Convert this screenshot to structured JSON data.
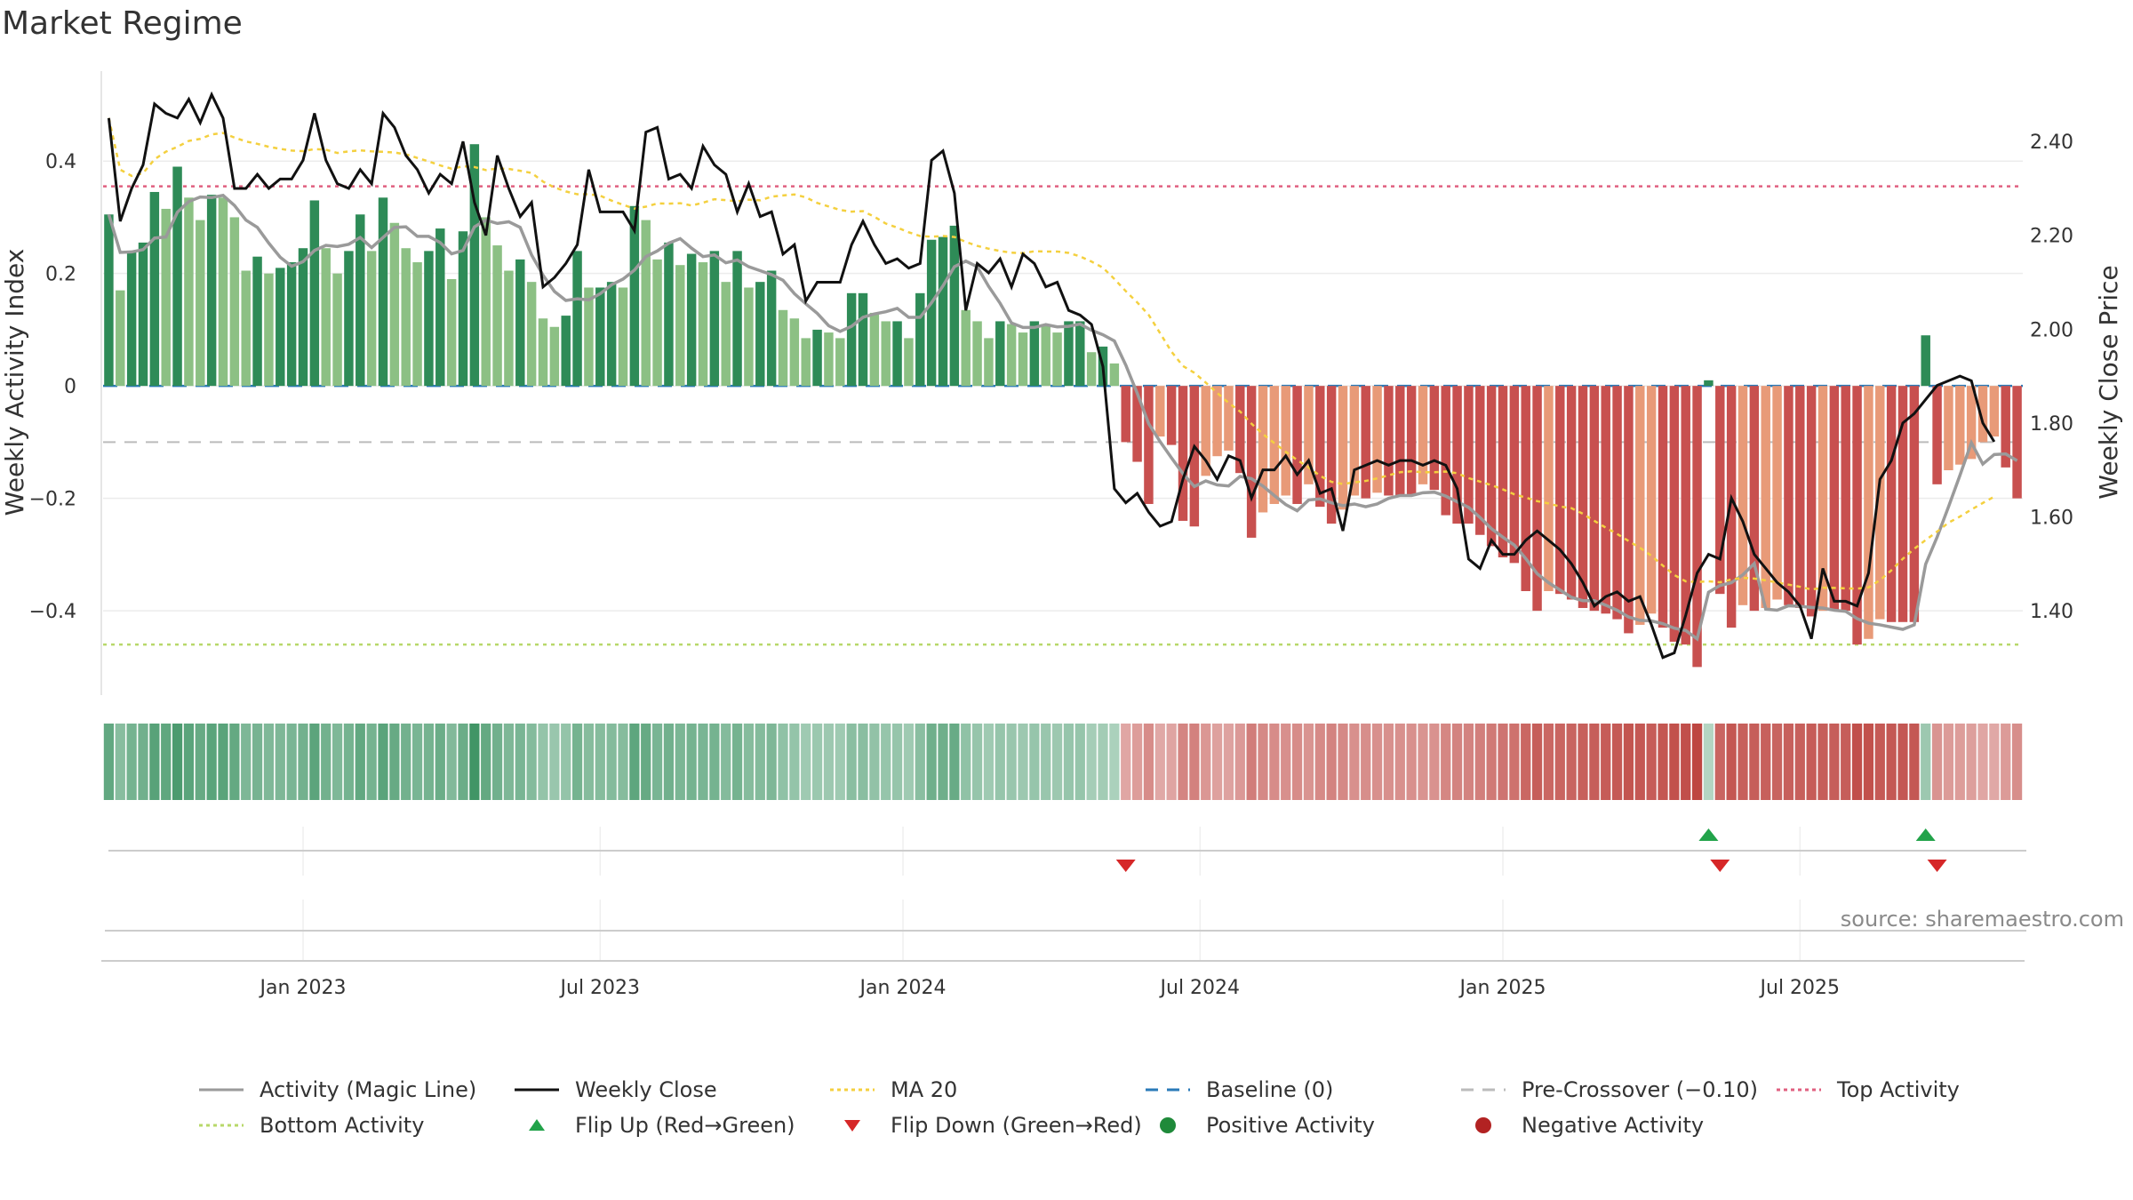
{
  "title": "Market Regime",
  "source": "source: sharemaestro.com",
  "colors": {
    "pos_dark": "#2e8b57",
    "pos_light": "#8cc084",
    "neg_dark": "#c8504f",
    "neg_light": "#e89a78",
    "magic": "#9a9a9a",
    "close": "#111111",
    "ma": "#f4d03f",
    "baseline": "#2a7ab8",
    "precross": "#bbbbbb",
    "top": "#e06080",
    "bottom": "#b8d86a",
    "flip_up": "#22a34a",
    "flip_down": "#d62728",
    "pos_dot": "#1f8a3a",
    "neg_dot": "#b22222"
  },
  "legend": [
    {
      "label": "Activity (Magic Line)",
      "swatch": "line",
      "color": "#9a9a9a"
    },
    {
      "label": "Weekly Close",
      "swatch": "line",
      "color": "#111111"
    },
    {
      "label": "MA 20",
      "swatch": "dotted",
      "color": "#f4d03f"
    },
    {
      "label": "Baseline (0)",
      "swatch": "dashed",
      "color": "#2a7ab8"
    },
    {
      "label": "Pre-Crossover (−0.10)",
      "swatch": "dashed",
      "color": "#bbbbbb"
    },
    {
      "label": "Top Activity",
      "swatch": "dotted",
      "color": "#e06080"
    },
    {
      "label": "Bottom Activity",
      "swatch": "dotted",
      "color": "#b8d86a"
    },
    {
      "label": "Flip Up (Red→Green)",
      "swatch": "tri-up",
      "color": "#22a34a"
    },
    {
      "label": "Flip Down (Green→Red)",
      "swatch": "tri-down",
      "color": "#d62728"
    },
    {
      "label": "Positive Activity",
      "swatch": "dot",
      "color": "#1f8a3a"
    },
    {
      "label": "Negative Activity",
      "swatch": "dot",
      "color": "#b22222"
    }
  ],
  "chart_data": {
    "type": "bar",
    "xlabel": "",
    "ylabel": "Weekly Activity Index",
    "y2label": "Weekly Close Price",
    "ylim": [
      -0.55,
      0.56
    ],
    "y2lim": [
      1.22,
      2.55
    ],
    "yticks": [
      {
        "v": -0.4,
        "label": "−0.4"
      },
      {
        "v": -0.2,
        "label": "−0.2"
      },
      {
        "v": 0,
        "label": "0"
      },
      {
        "v": 0.2,
        "label": "0.2"
      },
      {
        "v": 0.4,
        "label": "0.4"
      }
    ],
    "y2ticks": [
      "1.40",
      "1.60",
      "1.80",
      "2.00",
      "2.20",
      "2.40"
    ],
    "xticks": [
      {
        "label": "Jan 2023",
        "week": 17.5
      },
      {
        "label": "Jul 2023",
        "week": 43.5
      },
      {
        "label": "Jan 2024",
        "week": 70
      },
      {
        "label": "Jul 2024",
        "week": 96
      },
      {
        "label": "Jan 2025",
        "week": 122.5
      },
      {
        "label": "Jul 2025",
        "week": 148.5
      }
    ],
    "reference_lines": {
      "baseline": 0,
      "pre_crossover": -0.1,
      "top_activity": 0.355,
      "bottom_activity": -0.46
    },
    "activity": [
      0.305,
      0.17,
      0.24,
      0.255,
      0.345,
      0.315,
      0.39,
      0.335,
      0.295,
      0.34,
      0.335,
      0.3,
      0.205,
      0.23,
      0.2,
      0.21,
      0.22,
      0.245,
      0.33,
      0.245,
      0.2,
      0.24,
      0.305,
      0.24,
      0.335,
      0.29,
      0.245,
      0.22,
      0.24,
      0.28,
      0.19,
      0.275,
      0.43,
      0.3,
      0.25,
      0.205,
      0.225,
      0.185,
      0.12,
      0.105,
      0.125,
      0.24,
      0.175,
      0.175,
      0.185,
      0.175,
      0.32,
      0.295,
      0.225,
      0.255,
      0.215,
      0.235,
      0.22,
      0.24,
      0.185,
      0.24,
      0.175,
      0.185,
      0.205,
      0.135,
      0.12,
      0.085,
      0.1,
      0.095,
      0.085,
      0.165,
      0.165,
      0.13,
      0.115,
      0.115,
      0.085,
      0.165,
      0.26,
      0.265,
      0.285,
      0.135,
      0.115,
      0.085,
      0.115,
      0.11,
      0.095,
      0.115,
      0.11,
      0.095,
      0.115,
      0.115,
      0.06,
      0.07,
      0.04,
      -0.1,
      -0.135,
      -0.21,
      -0.09,
      -0.105,
      -0.24,
      -0.25,
      -0.16,
      -0.125,
      -0.115,
      -0.155,
      -0.27,
      -0.225,
      -0.21,
      -0.195,
      -0.21,
      -0.175,
      -0.215,
      -0.245,
      -0.22,
      -0.195,
      -0.2,
      -0.19,
      -0.195,
      -0.195,
      -0.195,
      -0.175,
      -0.185,
      -0.23,
      -0.245,
      -0.245,
      -0.265,
      -0.285,
      -0.305,
      -0.315,
      -0.365,
      -0.4,
      -0.365,
      -0.37,
      -0.38,
      -0.395,
      -0.4,
      -0.405,
      -0.415,
      -0.44,
      -0.425,
      -0.405,
      -0.43,
      -0.455,
      -0.46,
      -0.5,
      0.01,
      -0.37,
      -0.43,
      -0.39,
      -0.4,
      -0.395,
      -0.38,
      -0.39,
      -0.395,
      -0.41,
      -0.4,
      -0.4,
      -0.4,
      -0.46,
      -0.45,
      -0.415,
      -0.42,
      -0.42,
      -0.42,
      0.09,
      -0.175,
      -0.15,
      -0.14,
      -0.13,
      -0.1,
      -0.09,
      -0.145,
      -0.2
    ],
    "weekly_close": [
      2.45,
      2.23,
      2.3,
      2.35,
      2.48,
      2.46,
      2.45,
      2.49,
      2.44,
      2.5,
      2.45,
      2.3,
      2.3,
      2.33,
      2.3,
      2.32,
      2.32,
      2.36,
      2.46,
      2.36,
      2.31,
      2.3,
      2.34,
      2.31,
      2.46,
      2.43,
      2.37,
      2.34,
      2.29,
      2.33,
      2.31,
      2.4,
      2.27,
      2.2,
      2.37,
      2.3,
      2.24,
      2.27,
      2.09,
      2.11,
      2.14,
      2.18,
      2.34,
      2.25,
      2.25,
      2.25,
      2.21,
      2.42,
      2.43,
      2.32,
      2.33,
      2.3,
      2.39,
      2.35,
      2.33,
      2.25,
      2.31,
      2.24,
      2.25,
      2.16,
      2.18,
      2.06,
      2.1,
      2.1,
      2.1,
      2.18,
      2.23,
      2.18,
      2.14,
      2.15,
      2.13,
      2.14,
      2.36,
      2.38,
      2.29,
      2.04,
      2.14,
      2.12,
      2.15,
      2.09,
      2.16,
      2.14,
      2.09,
      2.1,
      2.04,
      2.03,
      2.01,
      1.92,
      1.66,
      1.63,
      1.65,
      1.61,
      1.58,
      1.59,
      1.68,
      1.75,
      1.72,
      1.68,
      1.73,
      1.72,
      1.64,
      1.7,
      1.7,
      1.73,
      1.69,
      1.72,
      1.65,
      1.66,
      1.57,
      1.7,
      1.71,
      1.72,
      1.71,
      1.72,
      1.72,
      1.71,
      1.72,
      1.71,
      1.66,
      1.51,
      1.49,
      1.55,
      1.52,
      1.52,
      1.55,
      1.57,
      1.55,
      1.53,
      1.5,
      1.46,
      1.41,
      1.43,
      1.44,
      1.42,
      1.43,
      1.37,
      1.3,
      1.31,
      1.39,
      1.48,
      1.52,
      1.51,
      1.64,
      1.59,
      1.52,
      1.49,
      1.46,
      1.44,
      1.41,
      1.34,
      1.49,
      1.42,
      1.42,
      1.41,
      1.48,
      1.68,
      1.72,
      1.8,
      1.82,
      1.85,
      1.88,
      1.89,
      1.9,
      1.89,
      1.8,
      1.76
    ]
  }
}
